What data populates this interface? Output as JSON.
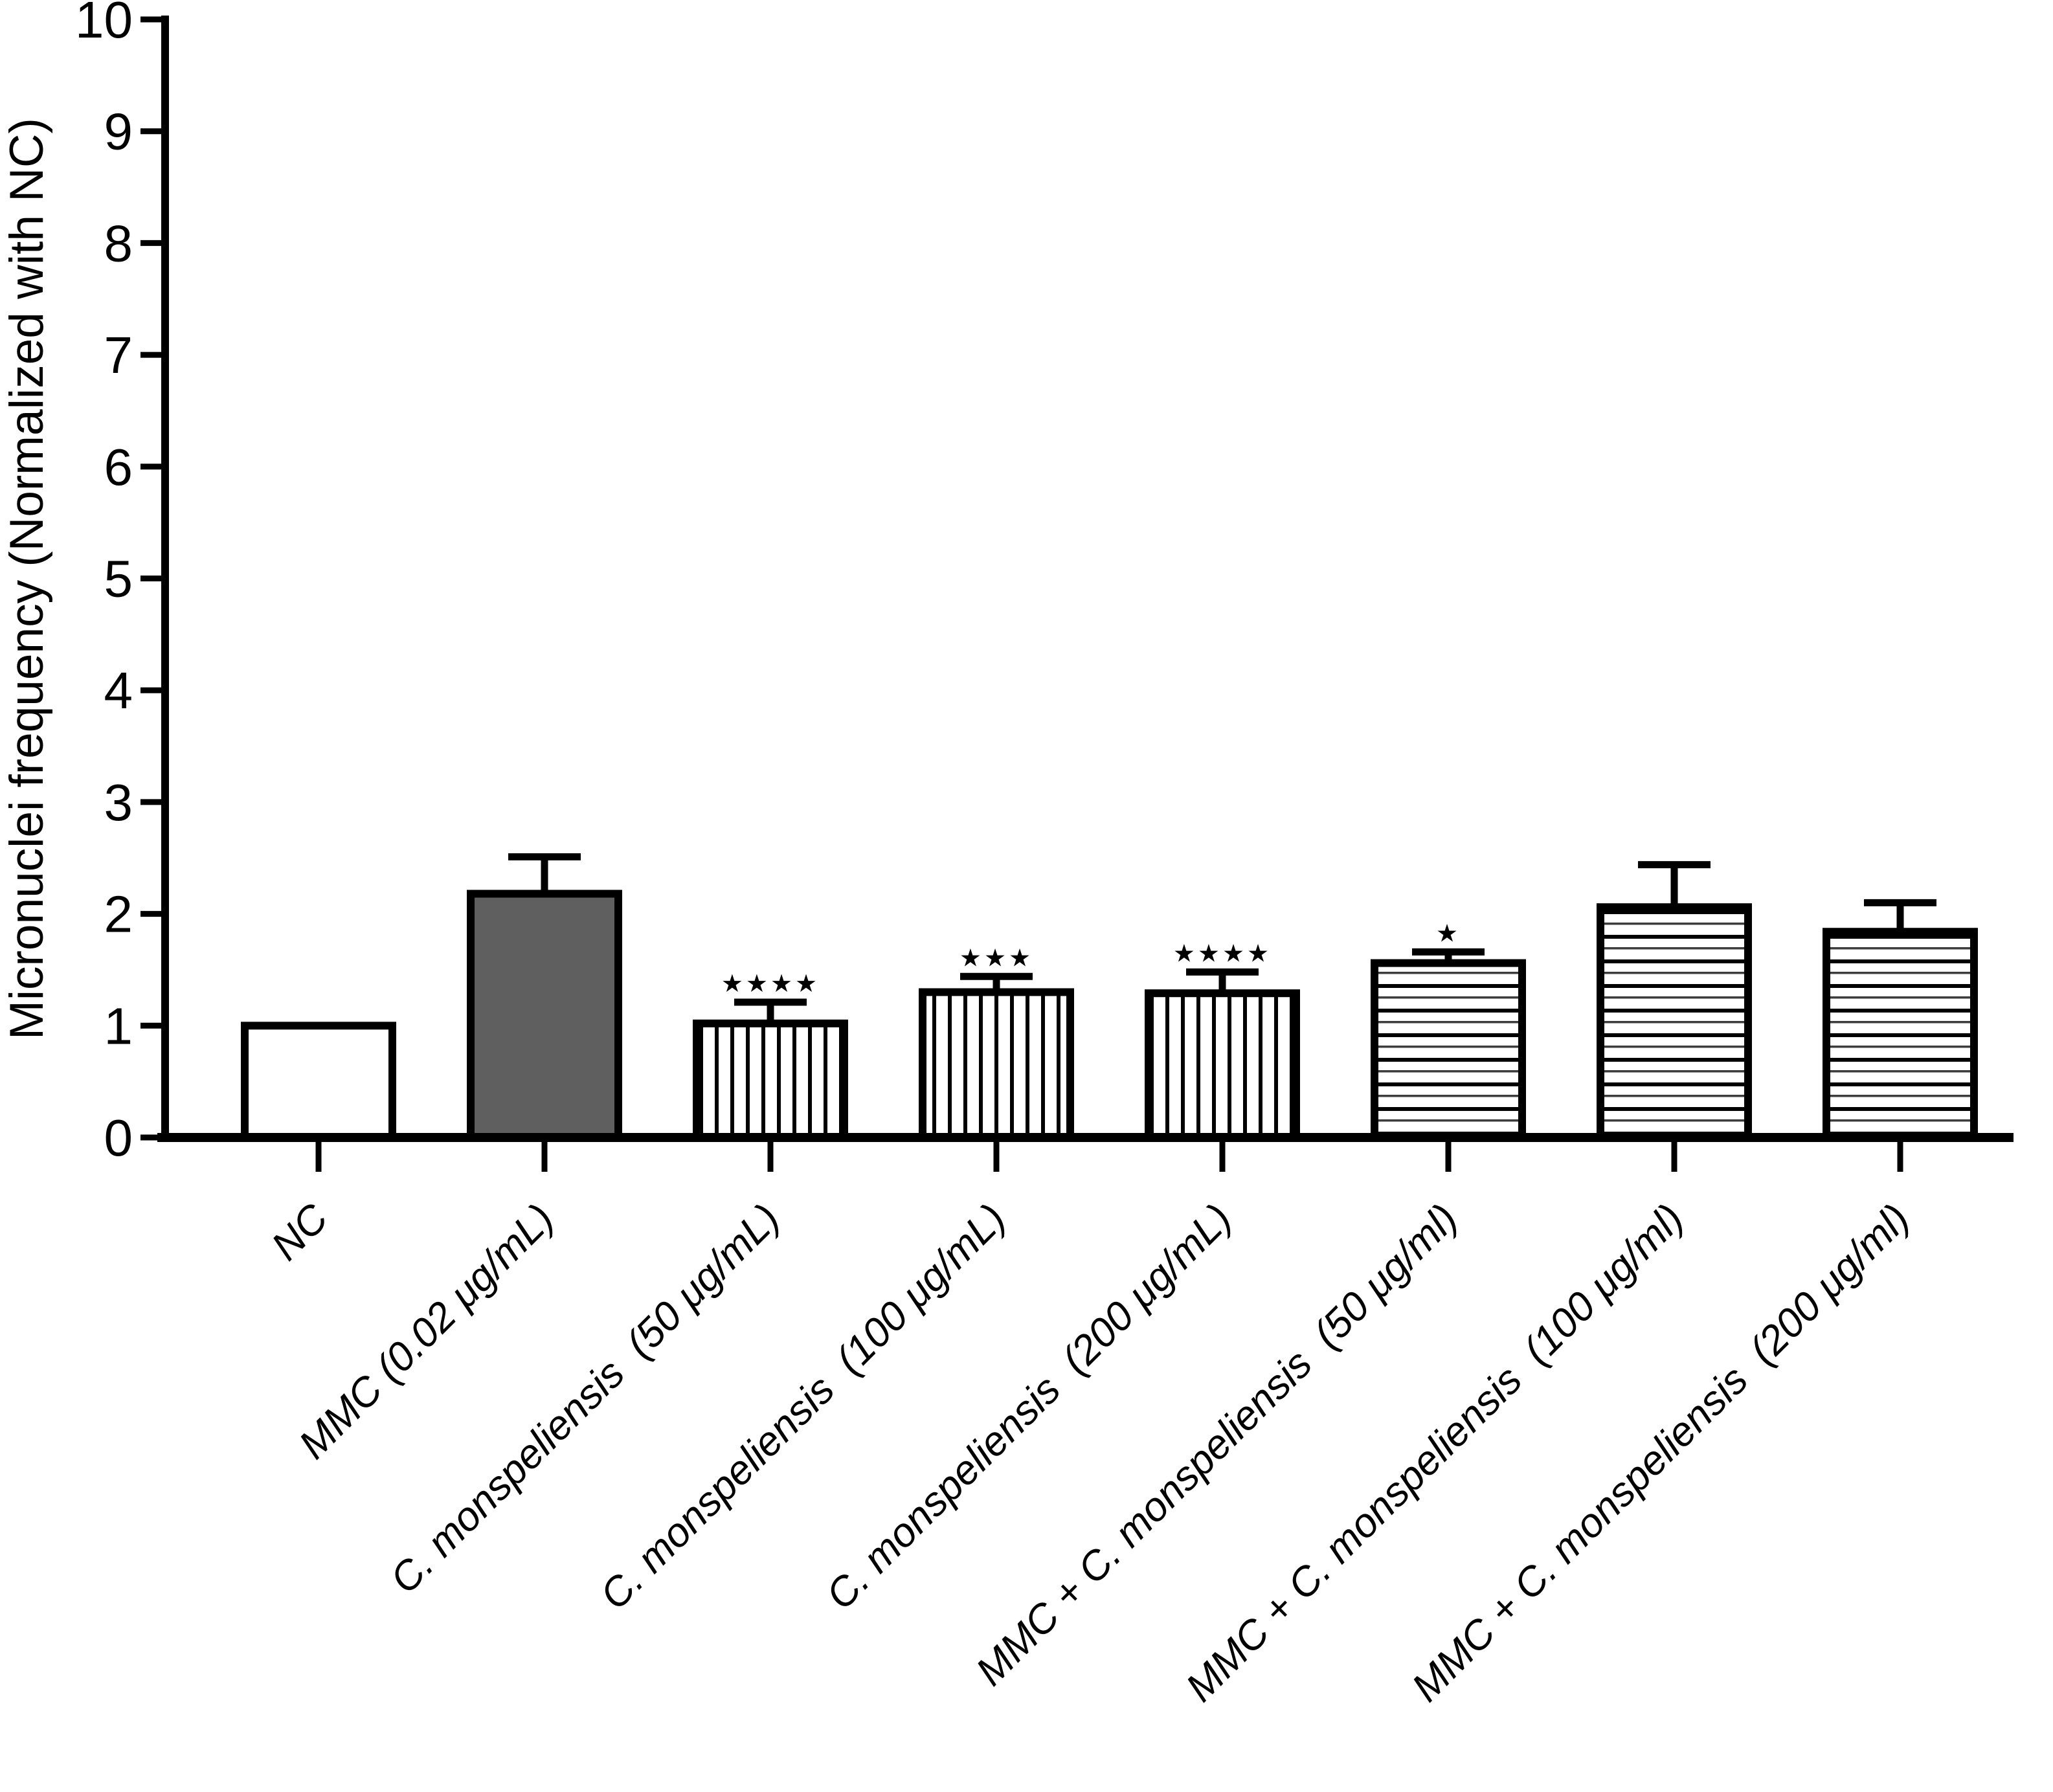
{
  "figure": {
    "description": "Bar chart of micronuclei frequency normalized with negative control",
    "background_color": "#ffffff"
  },
  "chart_data": {
    "type": "bar",
    "title": "",
    "xlabel": "",
    "ylabel": "Micronuclei frequency (Normalized with NC)",
    "ylim": [
      0,
      10
    ],
    "ytick_labels": [
      "0",
      "1",
      "2",
      "3",
      "4",
      "5",
      "6",
      "7",
      "8",
      "9",
      "10"
    ],
    "grid": false,
    "legend_position": "none",
    "categories": [
      "NC",
      "MMC (0.02 μg/mL)",
      "C. monspeliensis  (50 μg/mL)",
      "C. monspeliensis  (100 μg/mL)",
      "C. monspeliensis  (200 μg/mL)",
      "MMC + C. monspeliensis  (50 μg/ml)",
      "MMC + C. monspeliensis  (100 μg/ml)",
      "MMC + C. monspeliensis  (200 μg/ml)"
    ],
    "values": [
      1.0,
      2.18,
      1.02,
      1.3,
      1.29,
      1.56,
      2.06,
      1.84
    ],
    "errors_up": [
      0,
      0.33,
      0.19,
      0.14,
      0.19,
      0.1,
      0.38,
      0.26
    ],
    "significance": [
      "",
      "",
      "★★★★",
      "★★★",
      "★★★★",
      "★",
      "",
      ""
    ],
    "bar_styles": [
      "white",
      "darkgray",
      "vstripe",
      "vstripe",
      "vstripe",
      "hstripe",
      "hstripe",
      "hstripe"
    ],
    "colors": {
      "bar_dark": "#5f5f5f",
      "bar_white": "#ffffff",
      "outline": "#000000",
      "stripe": "#000000",
      "stripe_thin": "#3d3d3d",
      "axis": "#000000",
      "text": "#000000"
    }
  }
}
